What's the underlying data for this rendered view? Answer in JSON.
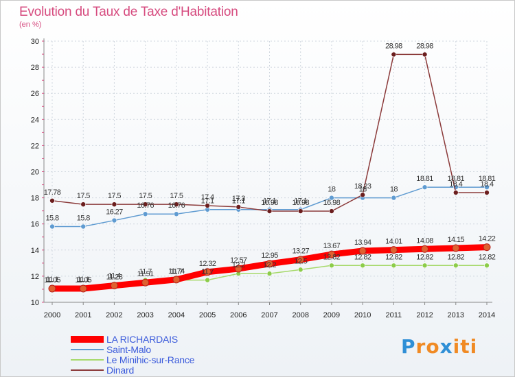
{
  "title": "Evolution du Taux de Taxe d'Habitation",
  "subtitle": "(en %)",
  "logo": "Proxiti",
  "colors": {
    "title": "#d64b7f",
    "legend_text": "#3b5bdb",
    "grid": "#cfd6de",
    "axis": "#888888",
    "tick_label": "#222222",
    "logo_p": "#2f8fd6",
    "logo_rest": "#f08a24"
  },
  "chart_data": {
    "type": "line",
    "x": [
      "2000",
      "2001",
      "2002",
      "2003",
      "2004",
      "2005",
      "2006",
      "2007",
      "2008",
      "2009",
      "2010",
      "2011",
      "2012",
      "2013",
      "2014"
    ],
    "ylim": [
      10,
      30
    ],
    "yticks": [
      10,
      12,
      14,
      16,
      18,
      20,
      22,
      24,
      26,
      28,
      30
    ],
    "grid": true,
    "legend_position": "bottom-left",
    "series": [
      {
        "name": "LA RICHARDAIS",
        "color": "#ff0000",
        "marker": "#e06030",
        "values": [
          11.05,
          11.05,
          11.28,
          11.51,
          11.74,
          12.32,
          12.57,
          12.95,
          13.27,
          13.67,
          13.94,
          14.01,
          14.08,
          14.15,
          14.22
        ],
        "labels": [
          "11.05",
          "11.05",
          "11.28",
          "11.51",
          "11.74",
          "12.32",
          "12.57",
          "12.95",
          "13.27",
          "13.67",
          "13.94",
          "14.01",
          "14.08",
          "14.15",
          "14.22"
        ]
      },
      {
        "name": "Saint-Malo",
        "color": "#5f9bd1",
        "marker": "#5f9bd1",
        "values": [
          15.8,
          15.8,
          16.27,
          16.76,
          16.76,
          17.1,
          17.1,
          17.1,
          17.1,
          18,
          18,
          18,
          18.81,
          18.81,
          18.81
        ],
        "labels": [
          "15.8",
          "15.8",
          "16.27",
          "16.76",
          "16.76",
          "17.1",
          "17.1",
          "17.1",
          "17.1",
          "18",
          "18",
          "18",
          "18.81",
          "18.81",
          "18.81"
        ]
      },
      {
        "name": "Le Minihic-sur-Rance",
        "color": "#a6d96a",
        "marker": "#8ccc4a",
        "values": [
          11.1,
          11.1,
          11.4,
          11.7,
          11.7,
          11.7,
          12.2,
          12.2,
          12.5,
          12.82,
          12.82,
          12.82,
          12.82,
          12.82,
          12.82
        ],
        "labels": [
          "11.1",
          "11.1",
          "11.4",
          "11.7",
          "11.7",
          "11.7",
          "12.2",
          "12.2",
          "12.5",
          "12.82",
          "12.82",
          "12.82",
          "12.82",
          "12.82",
          "12.82"
        ]
      },
      {
        "name": "Dinard",
        "color": "#8b3a3a",
        "marker": "#6b1e1e",
        "values": [
          17.78,
          17.5,
          17.5,
          17.5,
          17.5,
          17.4,
          17.3,
          16.98,
          16.98,
          16.98,
          18.23,
          28.98,
          28.98,
          18.4,
          18.4
        ],
        "labels": [
          "17.78",
          "17.5",
          "17.5",
          "17.5",
          "17.5",
          "17.4",
          "17.3",
          "16.98",
          "16.98",
          "16.98",
          "18.23",
          "28.98",
          "28.98",
          "18.4",
          "18.4"
        ]
      }
    ]
  },
  "legend": [
    {
      "label": "LA RICHARDAIS",
      "color": "#ff0000",
      "thickness": 10
    },
    {
      "label": "Saint-Malo",
      "color": "#5f9bd1",
      "thickness": 2
    },
    {
      "label": "Le Minihic-sur-Rance",
      "color": "#a6d96a",
      "thickness": 2
    },
    {
      "label": "Dinard",
      "color": "#8b3a3a",
      "thickness": 2
    }
  ]
}
